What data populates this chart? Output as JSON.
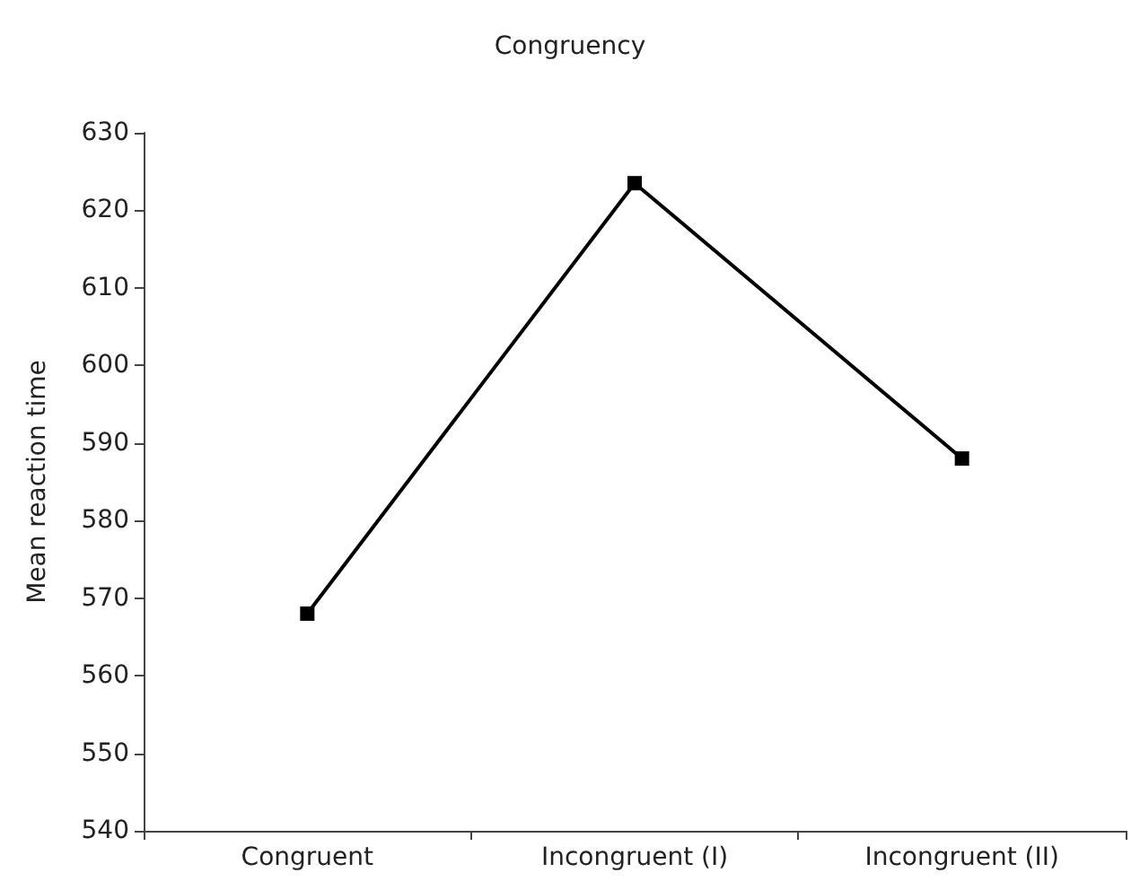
{
  "chart_data": {
    "type": "line",
    "title": "Congruency",
    "ylabel": "Mean reaction time",
    "categories": [
      "Congruent",
      "Incongruent (I)",
      "Incongruent (II)"
    ],
    "series": [
      {
        "color": "#000000",
        "values": [
          568,
          623.5,
          588
        ]
      }
    ],
    "ylim": [
      540,
      630
    ],
    "yticks": [
      540,
      550,
      560,
      570,
      580,
      590,
      600,
      610,
      620,
      630
    ],
    "grid": false,
    "marker": "square",
    "line_style": "solid"
  }
}
